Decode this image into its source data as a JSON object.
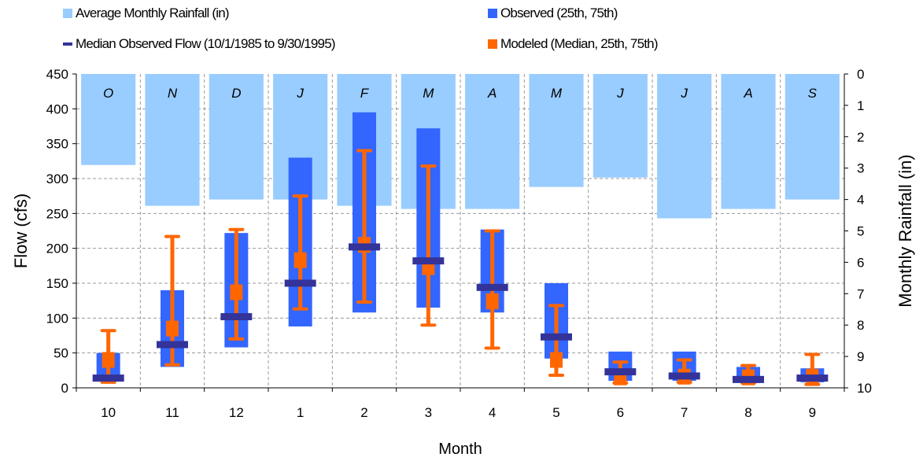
{
  "legend": {
    "rainfall": "Average Monthly Rainfall (in)",
    "observed": "Observed (25th, 75th)",
    "median": "Median Observed Flow (10/1/1985 to 9/30/1995)",
    "modeled": "Modeled (Median, 25th, 75th)"
  },
  "colors": {
    "rainfall": "#99ccff",
    "observed": "#3366ff",
    "median": "#333399",
    "modeled": "#ff6600",
    "grid": "#999999"
  },
  "chart_data": {
    "type": "bar",
    "xlabel": "Month",
    "ylabel": "Flow (cfs)",
    "y2label": "Monthly Rainfall (in)",
    "ylim": [
      0,
      450
    ],
    "y_ticks": [
      0,
      50,
      100,
      150,
      200,
      250,
      300,
      350,
      400,
      450
    ],
    "y2lim": [
      0,
      10
    ],
    "y2_inverted": true,
    "y2_ticks": [
      0,
      1,
      2,
      3,
      4,
      5,
      6,
      7,
      8,
      9,
      10
    ],
    "grid": true,
    "categories": [
      "10",
      "11",
      "12",
      "1",
      "2",
      "3",
      "4",
      "5",
      "6",
      "7",
      "8",
      "9"
    ],
    "month_letters": [
      "O",
      "N",
      "D",
      "J",
      "F",
      "M",
      "A",
      "M",
      "J",
      "J",
      "A",
      "S"
    ],
    "series": [
      {
        "name": "Average Monthly Rainfall (in)",
        "kind": "rainfall",
        "values": [
          2.9,
          4.2,
          4.0,
          4.0,
          4.2,
          4.3,
          4.3,
          3.6,
          3.3,
          4.6,
          4.3,
          4.0
        ]
      },
      {
        "name": "Observed (25th, 75th)",
        "kind": "observed",
        "low": [
          10,
          30,
          58,
          88,
          108,
          115,
          108,
          42,
          10,
          10,
          7,
          8
        ],
        "high": [
          50,
          140,
          222,
          330,
          395,
          372,
          227,
          150,
          52,
          52,
          30,
          28
        ]
      },
      {
        "name": "Median Observed Flow (10/1/1985 to 9/30/1995)",
        "kind": "median",
        "values": [
          14,
          62,
          102,
          150,
          202,
          182,
          144,
          73,
          23,
          17,
          12,
          14
        ]
      },
      {
        "name": "Modeled (Median, 25th, 75th)",
        "kind": "modeled",
        "median": [
          40,
          85,
          137,
          183,
          205,
          173,
          124,
          40,
          15,
          16,
          15,
          16
        ],
        "low": [
          8,
          33,
          70,
          113,
          123,
          90,
          57,
          18,
          7,
          8,
          7,
          5
        ],
        "high": [
          82,
          217,
          227,
          275,
          340,
          318,
          225,
          118,
          37,
          40,
          32,
          48
        ]
      }
    ]
  }
}
